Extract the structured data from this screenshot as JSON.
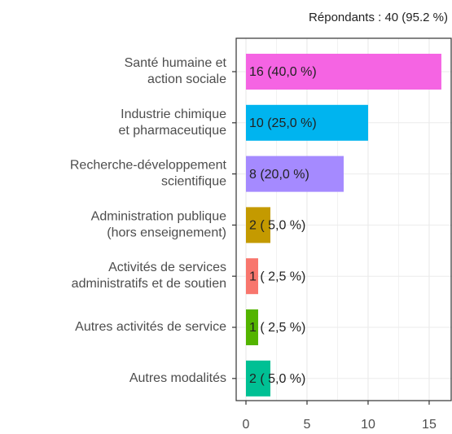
{
  "chart_data": {
    "type": "bar",
    "orientation": "horizontal",
    "subtitle": "Répondants : 40 (95.2 %)",
    "categories": [
      "Santé humaine et\naction sociale",
      "Industrie chimique\net pharmaceutique",
      "Recherche-développement\nscientifique",
      "Administration publique\n(hors enseignement)",
      "Activités de services\nadministratifs et de soutien",
      "Autres activités de service",
      "Autres modalités"
    ],
    "values": [
      16,
      10,
      8,
      2,
      1,
      1,
      2
    ],
    "value_labels": [
      "16 (40,0 %)",
      "10 (25,0 %)",
      "8 (20,0 %)",
      "2 ( 5,0 %)",
      "1 ( 2,5 %)",
      "1 ( 2,5 %)",
      "2 ( 5,0 %)"
    ],
    "colors": [
      "#f564e3",
      "#00b4ef",
      "#a58aff",
      "#c49a00",
      "#f8766d",
      "#53b400",
      "#00c094"
    ],
    "xlim": [
      -0.8,
      16.87
    ],
    "xticks": [
      0,
      5,
      10,
      15
    ],
    "grid": true
  }
}
